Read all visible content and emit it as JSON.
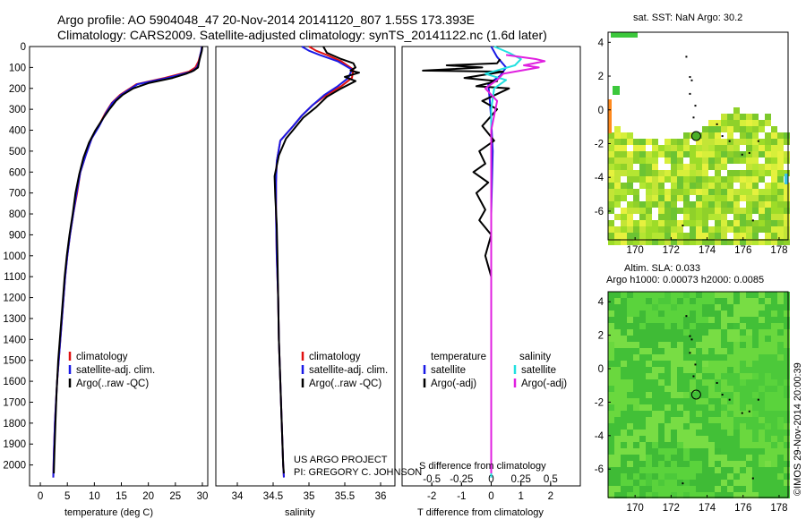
{
  "header": {
    "line1": "Argo profile: AO 5904048_47 20-Nov-2014 20141120_807 1.55S 173.393E",
    "line2": "Climatology: CARS2009. Satellite-adjusted climatology: synTS_20141122.nc (1.6d later)"
  },
  "credit": {
    "project": "US ARGO PROJECT",
    "pi": "PI: GREGORY C. JOHNSON"
  },
  "side_label": "©IMOS 29-Nov-2014 20:00:39",
  "colors": {
    "climatology": "#e01010",
    "satellite": "#1a1ae6",
    "argo": "#000000",
    "sal_satellite": "#22e0e0",
    "sal_argo": "#e020e0",
    "map_land": "#000000"
  },
  "legends": {
    "temp": [
      "climatology",
      "satellite-adj. clim.",
      "Argo(..raw -QC)"
    ],
    "sal": [
      "climatology",
      "satellite-adj. clim.",
      "Argo(..raw -QC)"
    ],
    "diff_t_title": "temperature",
    "diff_t": [
      "satellite",
      "Argo(-adj)"
    ],
    "diff_s_title": "salinity",
    "diff_s": [
      "satellite",
      "Argo(-adj)"
    ]
  },
  "chart_data": [
    {
      "type": "line",
      "xlabel": "temperature (deg C)",
      "ylabel": "",
      "xlim": [
        -2,
        31
      ],
      "ylim": [
        2100,
        0
      ],
      "xticks": [
        "0",
        "5",
        "10",
        "15",
        "20",
        "25",
        "30"
      ],
      "xtick_values": [
        0,
        5,
        10,
        15,
        20,
        25,
        30
      ],
      "yticks": [
        "0",
        "100",
        "200",
        "300",
        "400",
        "500",
        "600",
        "700",
        "800",
        "900",
        "1000",
        "1100",
        "1200",
        "1300",
        "1400",
        "1500",
        "1600",
        "1700",
        "1800",
        "1900",
        "2000"
      ],
      "ytick_values": [
        0,
        100,
        200,
        300,
        400,
        500,
        600,
        700,
        800,
        900,
        1000,
        1100,
        1200,
        1300,
        1400,
        1500,
        1600,
        1700,
        1800,
        1900,
        2000
      ],
      "series": [
        {
          "name": "climatology",
          "color": "#e01010",
          "x": [
            29.9,
            29.8,
            29.6,
            29.3,
            28.7,
            27.5,
            23.0,
            17.8,
            14.8,
            13.2,
            12.0,
            10.8,
            9.5,
            8.4,
            7.4,
            6.8,
            6.1,
            5.5,
            5.0,
            4.6,
            4.3,
            4.0,
            3.7,
            3.4,
            3.1,
            2.9,
            2.7,
            2.5,
            2.4
          ],
          "y": [
            0,
            20,
            40,
            70,
            100,
            120,
            150,
            180,
            230,
            270,
            320,
            380,
            440,
            520,
            600,
            700,
            800,
            900,
            1000,
            1100,
            1200,
            1300,
            1400,
            1500,
            1600,
            1700,
            1800,
            1950,
            2060
          ]
        },
        {
          "name": "satellite-adj. clim.",
          "color": "#1a1ae6",
          "x": [
            29.9,
            29.8,
            29.6,
            29.4,
            29.0,
            28.0,
            23.5,
            18.0,
            15.0,
            13.3,
            12.1,
            10.9,
            9.5,
            8.4,
            7.4,
            6.7,
            6.1,
            5.5,
            5.0,
            4.6,
            4.3,
            4.0,
            3.7,
            3.4,
            3.1,
            2.9,
            2.7,
            2.5,
            2.4
          ],
          "y": [
            0,
            20,
            40,
            70,
            100,
            120,
            150,
            180,
            230,
            270,
            320,
            380,
            440,
            520,
            600,
            700,
            800,
            900,
            1000,
            1100,
            1200,
            1300,
            1400,
            1500,
            1600,
            1700,
            1800,
            1950,
            2060
          ]
        },
        {
          "name": "Argo(..raw -QC)",
          "color": "#000000",
          "x": [
            30.0,
            29.9,
            29.7,
            29.4,
            29.2,
            28.4,
            27.0,
            24.5,
            20.0,
            17.2,
            15.3,
            14.0,
            12.8,
            11.7,
            10.2,
            9.0,
            8.0,
            7.2,
            6.5,
            6.0,
            5.4,
            4.9,
            4.5,
            4.2,
            3.9,
            3.6,
            3.3,
            3.0,
            2.8,
            2.6,
            2.5
          ],
          "y": [
            0,
            20,
            40,
            70,
            100,
            115,
            130,
            150,
            175,
            200,
            230,
            260,
            300,
            340,
            400,
            460,
            530,
            610,
            700,
            800,
            900,
            1000,
            1100,
            1200,
            1300,
            1400,
            1500,
            1650,
            1800,
            1950,
            2040
          ]
        }
      ]
    },
    {
      "type": "line",
      "xlabel": "salinity",
      "ylabel": "",
      "xlim": [
        33.7,
        36.2
      ],
      "ylim": [
        2100,
        0
      ],
      "xticks": [
        "34",
        "34.5",
        "35",
        "35.5",
        "36"
      ],
      "xtick_values": [
        34,
        34.5,
        35,
        35.5,
        36
      ],
      "series": [
        {
          "name": "climatology",
          "color": "#e01010",
          "x": [
            35.0,
            35.1,
            35.25,
            35.45,
            35.62,
            35.6,
            35.45,
            35.25,
            35.05,
            34.9,
            34.78,
            34.6,
            34.55,
            34.54,
            34.54,
            34.55,
            34.57,
            34.58,
            34.6,
            34.62,
            34.64,
            34.65
          ],
          "y": [
            0,
            20,
            40,
            70,
            110,
            150,
            190,
            230,
            280,
            330,
            380,
            450,
            550,
            650,
            800,
            1000,
            1200,
            1400,
            1600,
            1800,
            2000,
            2060
          ]
        },
        {
          "name": "satellite-adj. clim.",
          "color": "#1a1ae6",
          "x": [
            34.9,
            35.0,
            35.15,
            35.4,
            35.6,
            35.55,
            35.4,
            35.22,
            35.05,
            34.9,
            34.78,
            34.6,
            34.55,
            34.54,
            34.54,
            34.55,
            34.57,
            34.58,
            34.6,
            34.62,
            34.64,
            34.65
          ],
          "y": [
            0,
            20,
            40,
            70,
            110,
            150,
            190,
            230,
            280,
            330,
            380,
            450,
            550,
            650,
            800,
            1000,
            1200,
            1400,
            1600,
            1800,
            2000,
            2060
          ]
        },
        {
          "name": "Argo(..raw -QC)",
          "color": "#000000",
          "x": [
            35.2,
            35.25,
            35.45,
            35.62,
            35.65,
            35.58,
            35.7,
            35.5,
            35.65,
            35.45,
            35.25,
            35.1,
            34.92,
            34.8,
            34.68,
            34.58,
            34.52,
            34.53,
            34.55,
            34.56,
            34.57,
            34.58,
            34.6,
            34.62,
            34.64,
            34.65
          ],
          "y": [
            0,
            30,
            60,
            80,
            100,
            115,
            125,
            145,
            165,
            200,
            240,
            290,
            340,
            390,
            440,
            520,
            620,
            720,
            850,
            1000,
            1200,
            1400,
            1600,
            1800,
            2000,
            2040
          ]
        }
      ]
    },
    {
      "type": "line",
      "xlabel": "T difference from climatology",
      "title": "S difference from climatology",
      "xlim": [
        -3,
        3
      ],
      "ylim": [
        2100,
        0
      ],
      "xticks_bottom": [
        "-2",
        "-1",
        "0",
        "1",
        "2"
      ],
      "xticks_bottom_values": [
        -2,
        -1,
        0,
        1,
        2
      ],
      "xticks_top": [
        "-0.5",
        "-0.25",
        "0",
        "0.25",
        "0.5"
      ],
      "xticks_top_values": [
        -0.5,
        -0.25,
        0,
        0.25,
        0.5
      ],
      "series": [
        {
          "name": "satellite",
          "color": "#1a1ae6",
          "x": [
            0.0,
            0.2,
            0.5,
            0.3,
            -0.1,
            -0.05,
            0.0,
            0.05,
            0.0,
            0.0,
            0.0
          ],
          "y": [
            0,
            50,
            100,
            140,
            180,
            250,
            350,
            500,
            800,
            1500,
            2060
          ]
        },
        {
          "name": "Argo(-adj)",
          "color": "#000000",
          "x": [
            0.3,
            0.2,
            -1.5,
            -0.3,
            -2.3,
            0.4,
            -0.9,
            0.2,
            -0.5,
            0.6,
            -0.3,
            0.2,
            -0.3,
            0.1,
            -0.4,
            -0.2,
            -0.6,
            -0.1,
            -0.5,
            -0.2,
            -0.4,
            0.0,
            -0.2,
            0.0,
            0.0,
            0.0
          ],
          "y": [
            60,
            80,
            90,
            100,
            115,
            120,
            150,
            165,
            190,
            200,
            260,
            300,
            380,
            450,
            500,
            560,
            600,
            650,
            700,
            780,
            830,
            900,
            1000,
            1100,
            1500,
            2040
          ]
        },
        {
          "name": "satellite (salinity)",
          "color": "#22e0e0",
          "x": [
            0.1,
            0.6,
            1.0,
            0.8,
            0.3,
            -0.2,
            0.5,
            0.1,
            0.0,
            0.0,
            0.0
          ],
          "y": [
            0,
            30,
            60,
            90,
            110,
            130,
            160,
            200,
            300,
            800,
            2060
          ]
        },
        {
          "name": "Argo(-adj) (salinity)",
          "color": "#e020e0",
          "x": [
            0.5,
            1.5,
            1.8,
            1.1,
            1.6,
            0.4,
            0.2,
            -0.2,
            0.2,
            0.0,
            0.0,
            0.0
          ],
          "y": [
            40,
            60,
            70,
            90,
            100,
            130,
            160,
            200,
            260,
            400,
            1000,
            2040
          ]
        }
      ]
    },
    {
      "type": "heatmap",
      "title": "sat. SST: NaN Argo: 30.2",
      "xlim": [
        168.5,
        178.5
      ],
      "ylim": [
        -7.7,
        4.6
      ],
      "xticks": [
        "170",
        "172",
        "174",
        "176",
        "178"
      ],
      "xtick_values": [
        170,
        172,
        174,
        176,
        178
      ],
      "yticks": [
        "4",
        "2",
        "0",
        "-2",
        "-4",
        "-6"
      ],
      "ytick_values": [
        4,
        2,
        0,
        -2,
        -4,
        -6
      ],
      "marker": {
        "lon": 173.393,
        "lat": -1.55,
        "fill": "#4caf28"
      }
    },
    {
      "type": "heatmap",
      "title": "Altim. SLA: 0.033",
      "subtitle": "Argo h1000: 0.00073 h2000: 0.0085",
      "xlim": [
        168.5,
        178.5
      ],
      "ylim": [
        -7.7,
        4.6
      ],
      "xticks": [
        "170",
        "172",
        "174",
        "176",
        "178"
      ],
      "xtick_values": [
        170,
        172,
        174,
        176,
        178
      ],
      "yticks": [
        "4",
        "2",
        "0",
        "-2",
        "-4",
        "-6"
      ],
      "ytick_values": [
        4,
        2,
        0,
        -2,
        -4,
        -6
      ],
      "marker": {
        "lon": 173.393,
        "lat": -1.55,
        "fill": "none"
      }
    }
  ]
}
